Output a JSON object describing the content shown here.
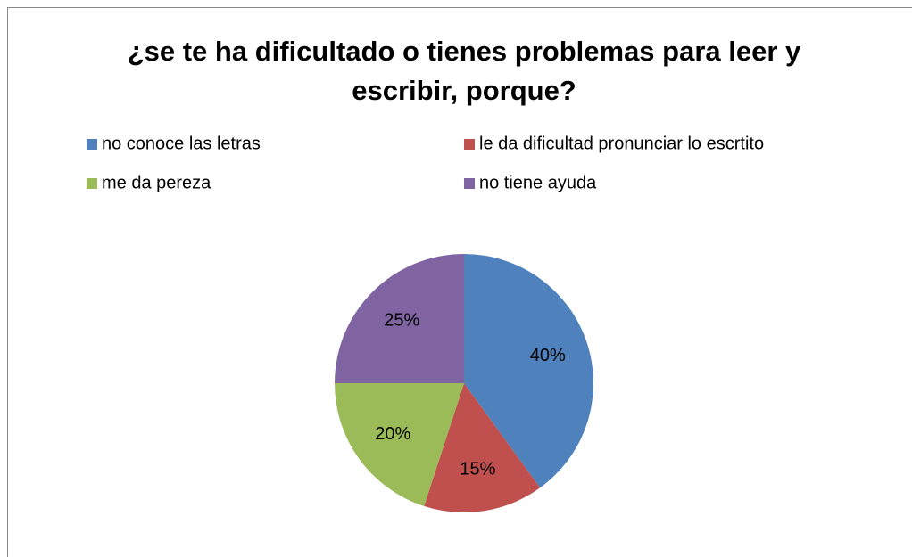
{
  "chart_data": {
    "type": "pie",
    "title": "¿se te ha dificultado o tienes problemas para leer y escribir, porque?",
    "categories": [
      "no conoce las letras",
      "le da dificultad pronunciar lo escrtito",
      "me da pereza",
      "no tiene ayuda"
    ],
    "values": [
      40,
      15,
      20,
      25
    ],
    "value_labels": [
      "40%",
      "15%",
      "20%",
      "25%"
    ],
    "colors": [
      "#4f81bd",
      "#c0504d",
      "#9bbb59",
      "#8064a2"
    ],
    "legend": "top"
  }
}
